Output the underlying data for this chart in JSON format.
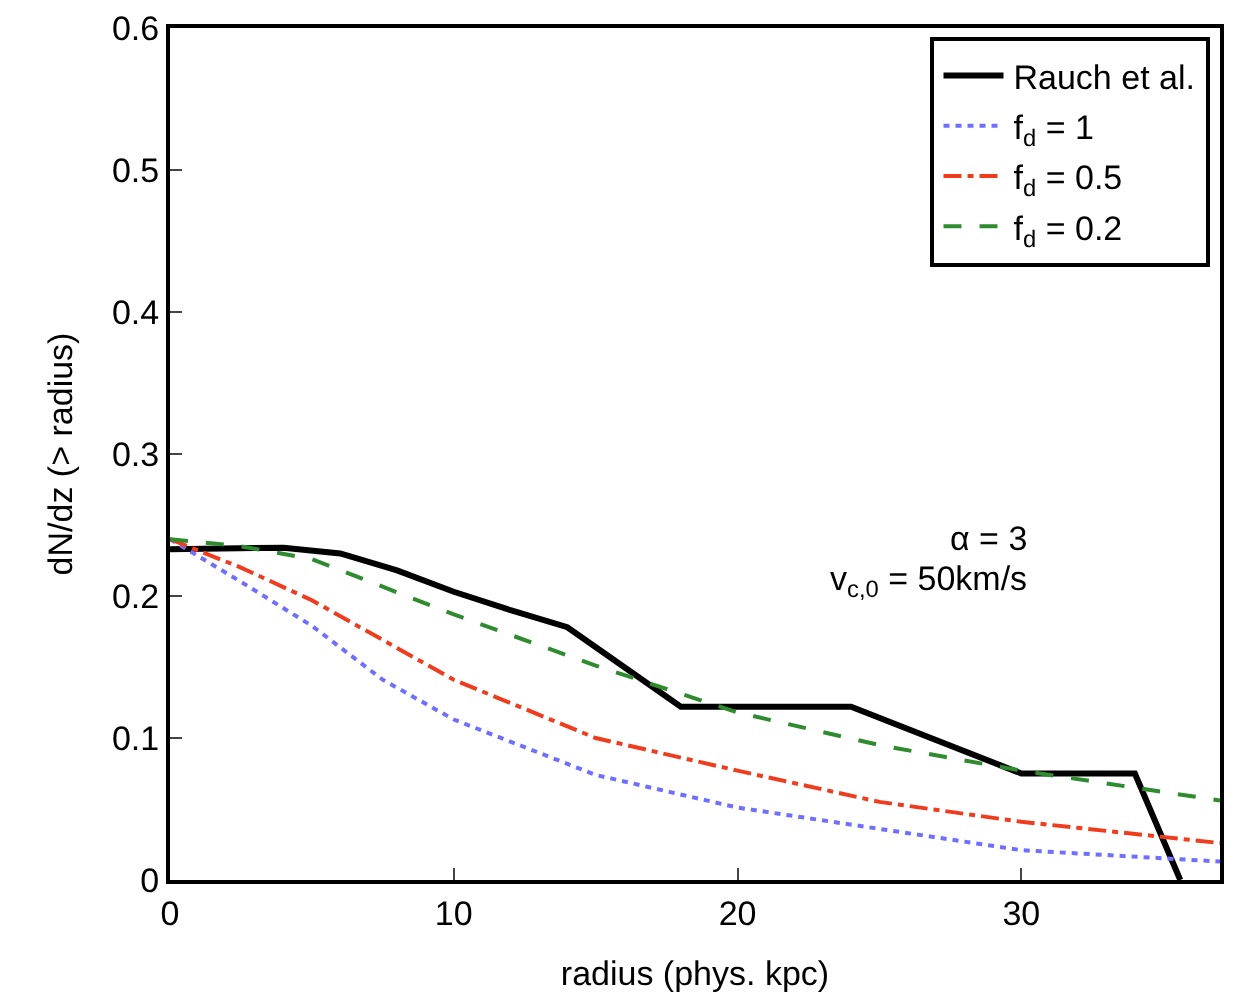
{
  "chart_data": {
    "type": "line",
    "xlabel": "radius (phys. kpc)",
    "ylabel": "dN/dz (> radius)",
    "xlim": [
      0,
      37
    ],
    "xticks": [
      0,
      10,
      20,
      30
    ],
    "ylim": [
      0,
      0.6
    ],
    "yticks": [
      0,
      0.1,
      0.2,
      0.3,
      0.4,
      0.5,
      0.6
    ],
    "legend": "top right",
    "marker": "none",
    "series": [
      {
        "name": "Rauch et al.",
        "color": "#000000",
        "line_style": "solid",
        "x": [
          0,
          4,
          6,
          8,
          10,
          12,
          14,
          16,
          18,
          24,
          30,
          34,
          35.6
        ],
        "values": [
          0.233,
          0.234,
          0.23,
          0.218,
          0.203,
          0.19,
          0.178,
          0.15,
          0.122,
          0.122,
          0.075,
          0.075,
          0
        ]
      },
      {
        "name": "f$_{d}$ = 1",
        "color": "#6f6fff",
        "line_style": "dotted",
        "x": [
          0,
          2.5,
          5,
          7.5,
          10,
          15,
          20,
          25,
          30,
          37
        ],
        "values": [
          0.24,
          0.21,
          0.179,
          0.141,
          0.113,
          0.074,
          0.051,
          0.036,
          0.021,
          0.013
        ]
      },
      {
        "name": "f$_{d}$ = 0.5",
        "color": "#f03c1e",
        "line_style": "dashdot",
        "x": [
          0,
          2.5,
          5,
          10,
          15,
          20,
          25,
          30,
          37
        ],
        "values": [
          0.24,
          0.22,
          0.197,
          0.141,
          0.1,
          0.077,
          0.055,
          0.041,
          0.026
        ]
      },
      {
        "name": "f$_{d}$ = 0.2",
        "color": "#2e8b2e",
        "line_style": "dashed",
        "x": [
          0,
          2.5,
          5,
          10,
          15,
          20,
          25,
          30,
          37
        ],
        "values": [
          0.24,
          0.235,
          0.226,
          0.187,
          0.151,
          0.118,
          0.095,
          0.077,
          0.056
        ]
      }
    ],
    "annotations": [
      "α = 3",
      "v$_{c,0}$ = 50km/s"
    ]
  }
}
